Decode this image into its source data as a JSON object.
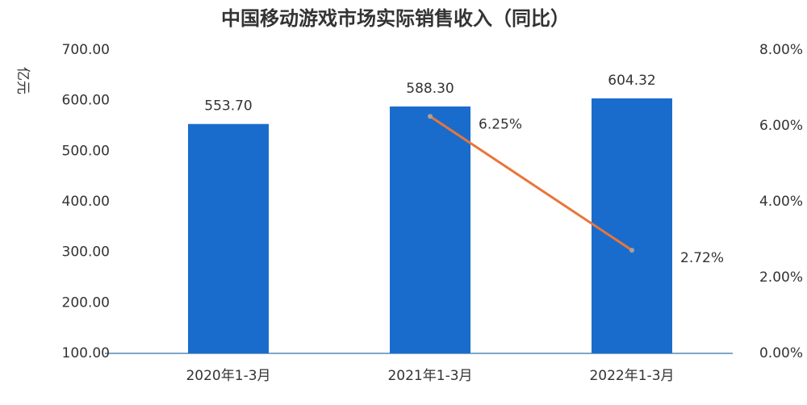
{
  "chart_data": {
    "type": "bar-line",
    "title": "中国移动游戏市场实际销售收入（同比）",
    "y_label": "亿元",
    "categories": [
      "2020年1-3月",
      "2021年1-3月",
      "2022年1-3月"
    ],
    "series": [
      {
        "type": "bar",
        "color": "#1a6ccc",
        "values": [
          553.7,
          588.3,
          604.32
        ],
        "value_labels": [
          "553.70",
          "588.30",
          "604.32"
        ]
      },
      {
        "type": "line",
        "axis": "y2",
        "color": "#e8763a",
        "values": [
          null,
          6.25,
          2.72
        ],
        "value_labels": [
          null,
          "6.25%",
          "2.72%"
        ]
      }
    ],
    "ylim": [
      100,
      700
    ],
    "yticks": [
      {
        "value": 100,
        "label": "100.00"
      },
      {
        "value": 200,
        "label": "200.00"
      },
      {
        "value": 300,
        "label": "300.00"
      },
      {
        "value": 400,
        "label": "400.00"
      },
      {
        "value": 500,
        "label": "500.00"
      },
      {
        "value": 600,
        "label": "600.00"
      },
      {
        "value": 700,
        "label": "700.00"
      }
    ],
    "y2lim": [
      0,
      8
    ],
    "y2ticks": [
      {
        "value": 0,
        "label": "0.00%"
      },
      {
        "value": 2,
        "label": "2.00%"
      },
      {
        "value": 4,
        "label": "4.00%"
      },
      {
        "value": 6,
        "label": "6.00%"
      },
      {
        "value": 8,
        "label": "8.00%"
      }
    ],
    "grid": false
  }
}
